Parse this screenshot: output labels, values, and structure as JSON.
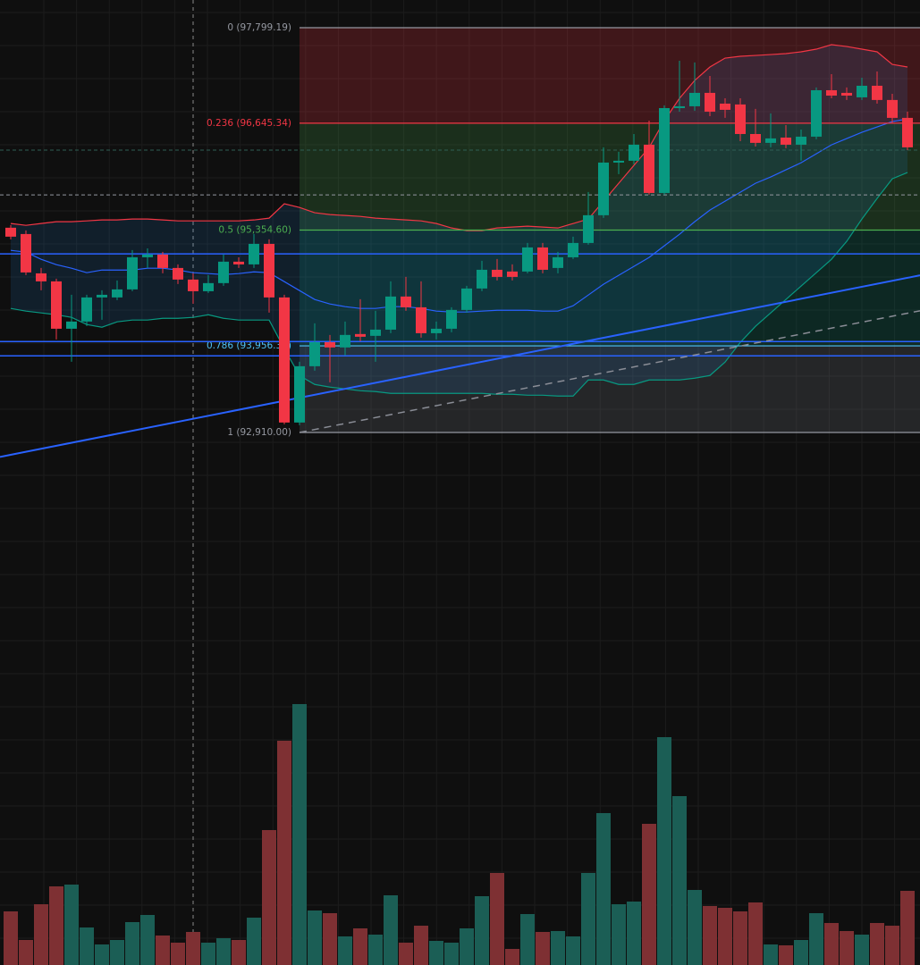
{
  "chart_data": {
    "type": "candlestick",
    "up_color": "#089981",
    "down_color": "#f23645",
    "open": [
      95383,
      95307,
      94832,
      94735,
      94163,
      94250,
      94541,
      94541,
      94638,
      95026,
      95059,
      94897,
      94757,
      94616,
      94714,
      94973,
      94940,
      95188,
      94541,
      93030,
      93710,
      94001,
      93937,
      94099,
      94077,
      94152,
      94552,
      94422,
      94109,
      94163,
      94390,
      94649,
      94875,
      94854,
      94854,
      95145,
      94897,
      95026,
      95199,
      95534,
      96170,
      96192,
      96386,
      95803,
      96828,
      96850,
      97012,
      96882,
      96872,
      96515,
      96408,
      96472,
      96386,
      96483,
      97044,
      97012,
      96958,
      97098,
      96926,
      96710
    ],
    "high": [
      95415,
      95350,
      94897,
      94768,
      94573,
      94573,
      94627,
      94746,
      95113,
      95134,
      95091,
      94940,
      94832,
      94811,
      95059,
      95026,
      95307,
      95242,
      94573,
      93764,
      94228,
      94088,
      94250,
      94519,
      94379,
      94735,
      94789,
      94735,
      94250,
      94422,
      94681,
      94983,
      95005,
      94940,
      95199,
      95199,
      95091,
      95275,
      95814,
      96354,
      96300,
      96515,
      96677,
      96861,
      97400,
      97379,
      97217,
      96947,
      96947,
      96818,
      96764,
      96623,
      96569,
      97077,
      97238,
      97077,
      97195,
      97271,
      97001,
      96785
    ],
    "low": [
      95242,
      94811,
      94627,
      94034,
      93764,
      94196,
      94271,
      94509,
      94616,
      94897,
      94832,
      94703,
      94465,
      94595,
      94681,
      94897,
      94897,
      94357,
      93009,
      92998,
      93656,
      93516,
      93840,
      94012,
      93764,
      94109,
      94379,
      94055,
      94034,
      94120,
      94357,
      94616,
      94746,
      94746,
      94832,
      94832,
      94832,
      95005,
      95178,
      95501,
      96030,
      96149,
      95782,
      95782,
      96785,
      96796,
      96731,
      96710,
      96429,
      96364,
      96354,
      96343,
      96192,
      96451,
      96947,
      96926,
      96926,
      96882,
      96645,
      96321
    ],
    "close": [
      95275,
      94843,
      94735,
      94163,
      94250,
      94541,
      94573,
      94638,
      95026,
      95059,
      94897,
      94757,
      94616,
      94714,
      94973,
      94940,
      95188,
      94541,
      93030,
      93710,
      94001,
      93937,
      94088,
      94066,
      94152,
      94552,
      94422,
      94109,
      94163,
      94390,
      94649,
      94875,
      94789,
      94789,
      95145,
      94875,
      95026,
      95199,
      95534,
      96170,
      96192,
      96386,
      95803,
      96828,
      96850,
      97012,
      96785,
      96807,
      96515,
      96408,
      96462,
      96386,
      96483,
      97044,
      96979,
      96979,
      97098,
      96926,
      96710,
      96354
    ],
    "volume": [
      60,
      28,
      68,
      88,
      90,
      42,
      23,
      28,
      48,
      56,
      33,
      25,
      37,
      25,
      30,
      28,
      53,
      151,
      251,
      292,
      61,
      58,
      32,
      41,
      34,
      78,
      25,
      44,
      27,
      25,
      41,
      77,
      103,
      18,
      57,
      37,
      38,
      32,
      103,
      170,
      68,
      71,
      158,
      255,
      189,
      84,
      66,
      64,
      60,
      70,
      23,
      22,
      28,
      58,
      47,
      38,
      34,
      47,
      44,
      83
    ],
    "vlim": [
      0,
      300
    ],
    "volume_up_color": "#1b5e55",
    "volume_down_color": "#7e3033",
    "bands": [
      {
        "name": "upper",
        "color": "#f23645",
        "values": [
          95434,
          95412,
          95434,
          95456,
          95456,
          95466,
          95477,
          95477,
          95488,
          95488,
          95477,
          95466,
          95466,
          95466,
          95466,
          95466,
          95477,
          95499,
          95672,
          95628,
          95564,
          95542,
          95531,
          95520,
          95499,
          95488,
          95477,
          95466,
          95434,
          95380,
          95348,
          95348,
          95380,
          95391,
          95402,
          95391,
          95380,
          95434,
          95488,
          95704,
          95920,
          96136,
          96352,
          96676,
          96946,
          97162,
          97324,
          97432,
          97454,
          97464,
          97475,
          97486,
          97508,
          97540,
          97594,
          97572,
          97540,
          97508,
          97356,
          97324
        ]
      },
      {
        "name": "basis",
        "color": "#2962ff",
        "values": [
          95110,
          95088,
          95002,
          94937,
          94894,
          94840,
          94872,
          94872,
          94872,
          94894,
          94894,
          94872,
          94840,
          94829,
          94818,
          94829,
          94850,
          94840,
          94732,
          94624,
          94516,
          94462,
          94430,
          94408,
          94408,
          94430,
          94430,
          94408,
          94376,
          94365,
          94365,
          94376,
          94386,
          94386,
          94386,
          94376,
          94376,
          94440,
          94570,
          94700,
          94808,
          94916,
          95024,
          95164,
          95304,
          95456,
          95596,
          95704,
          95812,
          95920,
          95996,
          96082,
          96168,
          96276,
          96384,
          96460,
          96536,
          96600,
          96665,
          96698
        ]
      },
      {
        "name": "lower",
        "color": "#089981",
        "values": [
          94408,
          94376,
          94354,
          94332,
          94300,
          94214,
          94181,
          94246,
          94268,
          94268,
          94289,
          94289,
          94300,
          94332,
          94289,
          94268,
          94268,
          94268,
          93922,
          93598,
          93490,
          93458,
          93436,
          93414,
          93404,
          93382,
          93382,
          93382,
          93382,
          93382,
          93382,
          93382,
          93371,
          93371,
          93360,
          93360,
          93350,
          93350,
          93544,
          93544,
          93490,
          93490,
          93544,
          93544,
          93544,
          93566,
          93598,
          93760,
          93998,
          94192,
          94354,
          94516,
          94678,
          94840,
          95002,
          95218,
          95488,
          95736,
          95974,
          96050
        ]
      }
    ],
    "band_fill": "rgba(33,150,243,0.12)",
    "fib": {
      "levels": [
        {
          "value": 97799.19,
          "label": "0 (97,799.19)",
          "color": "#9598a1",
          "fill": "rgba(242,54,69,0.22)"
        },
        {
          "value": 96645.34,
          "label": "0.236 (96,645.34)",
          "color": "#f23645",
          "fill": "rgba(76,175,80,0.2)"
        },
        {
          "value": 95354.6,
          "label": "0.5 (95,354.60)",
          "color": "#4caf50",
          "fill": "rgba(8,153,129,0.18)"
        },
        {
          "value": 93956.33,
          "label": "0.786 (93,956.33)",
          "color": "#4fc3f7",
          "fill": "rgba(120,123,134,0.22)"
        },
        {
          "value": 92910,
          "label": "1 (92,910.00)",
          "color": "#9598a1"
        }
      ]
    },
    "hlines": [
      {
        "value": 95067,
        "color": "#2962ff"
      },
      {
        "value": 94008,
        "color": "#2962ff"
      },
      {
        "value": 93836,
        "color": "#2962ff"
      },
      {
        "value": 95780,
        "color": "#9598a1",
        "dash": true
      },
      {
        "value": 96320,
        "color": "#2f5f55",
        "dash": true
      }
    ],
    "trendlines": [
      {
        "from": 92615,
        "to": 94808,
        "color": "#2962ff"
      },
      {
        "from": 92910,
        "to": 94380,
        "color": "#8a8d96",
        "dash": true
      }
    ]
  }
}
